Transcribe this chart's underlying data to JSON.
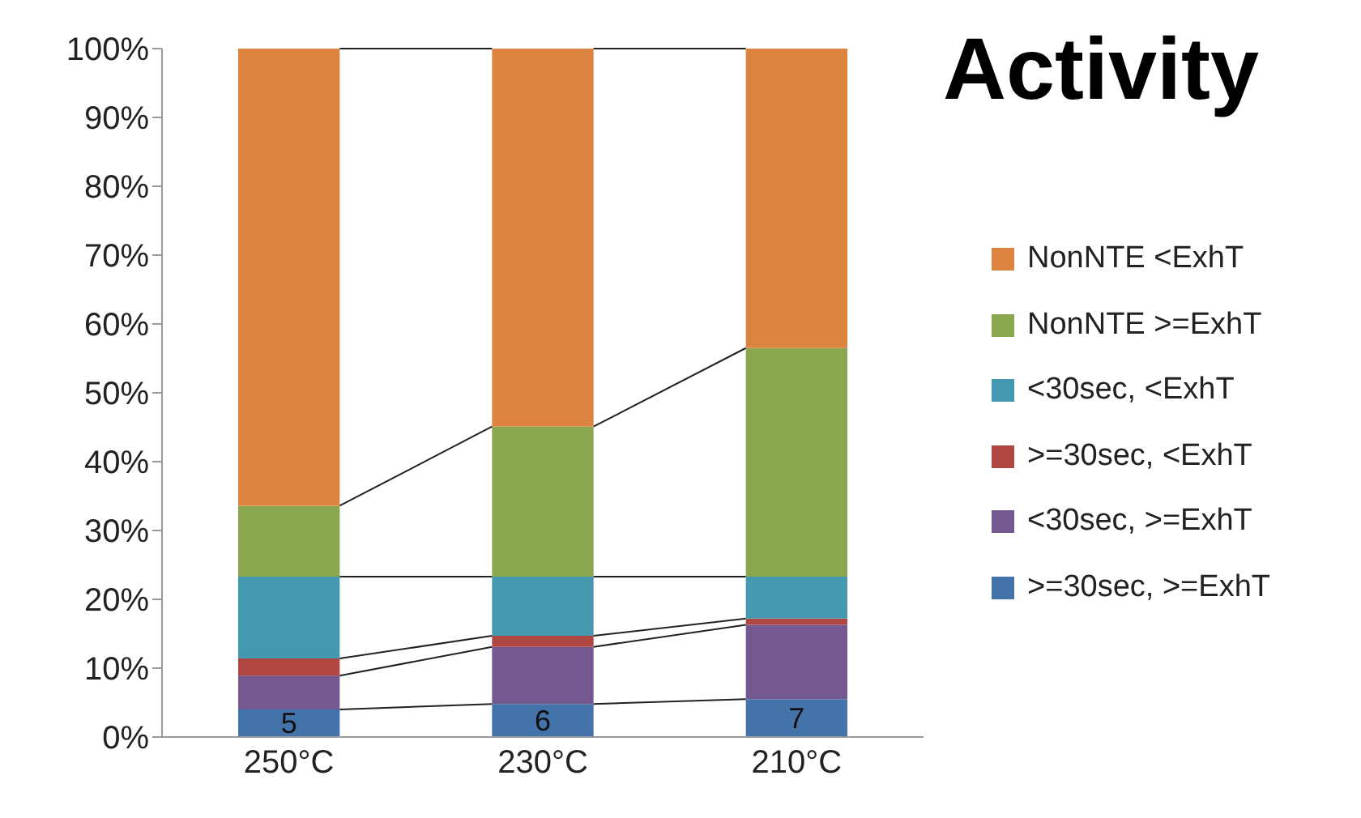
{
  "chart_data": {
    "type": "bar",
    "title": "Activity",
    "stacked": true,
    "categories": [
      "250°C",
      "230°C",
      "210°C"
    ],
    "series": [
      {
        "name": ">=30sec, >=ExhT",
        "color": "#4473a9",
        "values": [
          4.0,
          4.8,
          5.5
        ]
      },
      {
        "name": "<30sec, >=ExhT",
        "color": "#735990",
        "values": [
          4.9,
          8.3,
          10.8
        ]
      },
      {
        "name": ">=30sec, <ExhT",
        "color": "#b04642",
        "values": [
          2.5,
          1.6,
          0.9
        ]
      },
      {
        "name": "<30sec, <ExhT",
        "color": "#4499b0",
        "values": [
          11.9,
          8.6,
          6.1
        ]
      },
      {
        "name": "NonNTE >=ExhT",
        "color": "#8aa64e",
        "values": [
          10.3,
          21.8,
          33.2
        ]
      },
      {
        "name": "NonNTE <ExhT",
        "color": "#dd8340",
        "values": [
          66.4,
          54.9,
          43.5
        ]
      }
    ],
    "ylim": [
      0,
      100
    ],
    "yticks": [
      {
        "value": 0,
        "label": "0%"
      },
      {
        "value": 10,
        "label": "10%"
      },
      {
        "value": 20,
        "label": "20%"
      },
      {
        "value": 30,
        "label": "30%"
      },
      {
        "value": 40,
        "label": "40%"
      },
      {
        "value": 50,
        "label": "50%"
      },
      {
        "value": 60,
        "label": "60%"
      },
      {
        "value": 70,
        "label": "70%"
      },
      {
        "value": 80,
        "label": "80%"
      },
      {
        "value": 90,
        "label": "90%"
      },
      {
        "value": 100,
        "label": "100%"
      }
    ],
    "legend": "right",
    "grid": false,
    "annotations": [
      {
        "text": "5",
        "x": "250°C",
        "y": 4.0
      },
      {
        "text": "6",
        "x": "230°C",
        "y": 4.8
      },
      {
        "text": "7",
        "x": "210°C",
        "y": 5.5
      }
    ]
  }
}
